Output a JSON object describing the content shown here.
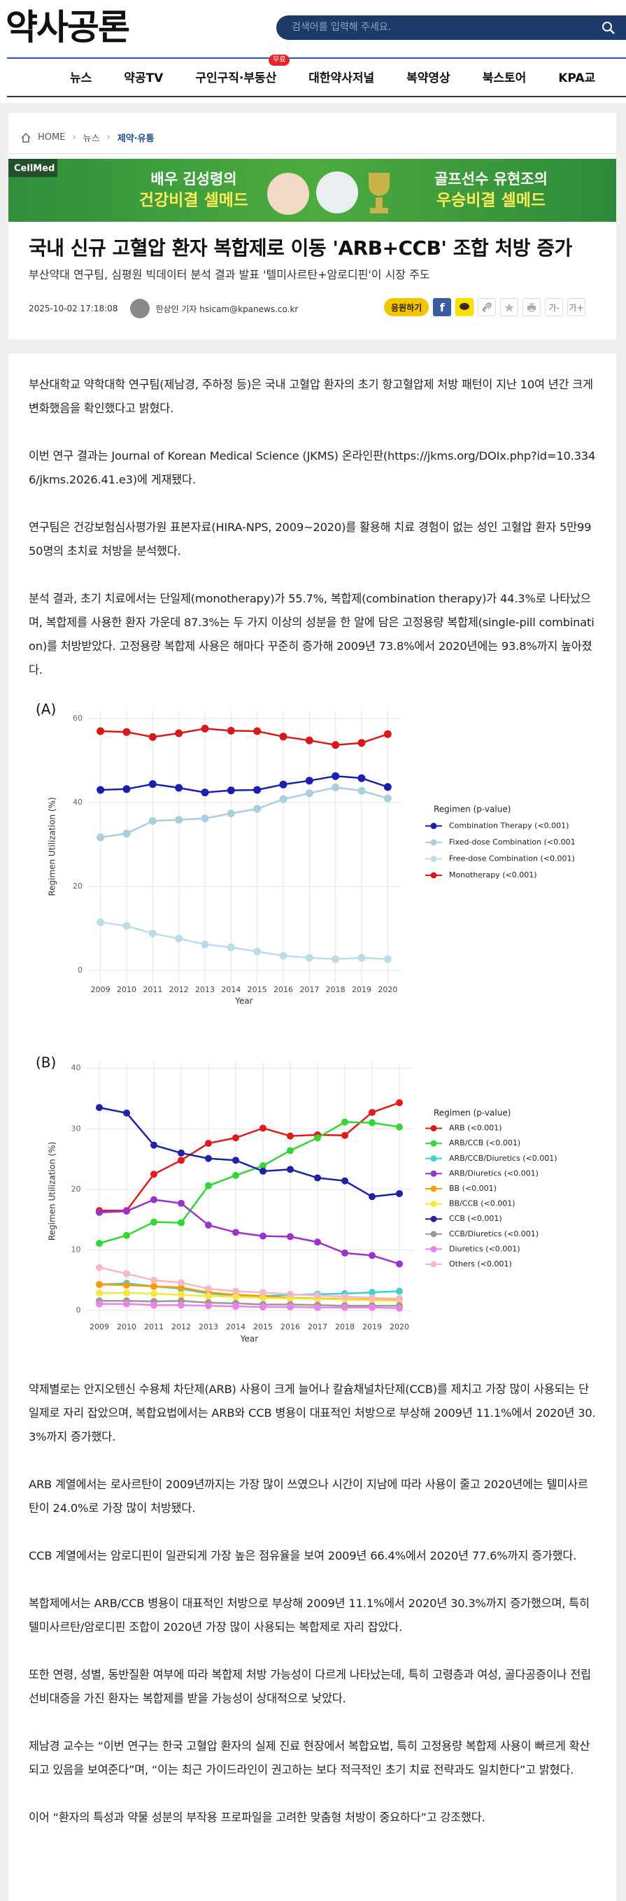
{
  "header": {
    "logo": "약사공론",
    "search_placeholder": "검색어를 입력해 주세요."
  },
  "nav": {
    "items": [
      "뉴스",
      "약공TV",
      "구인구직·부동산",
      "대한약사저널",
      "복약영상",
      "북스토어",
      "KPA교"
    ],
    "badge": "무료"
  },
  "breadcrumb": [
    "HOME",
    "뉴스",
    "제약·유통"
  ],
  "banner": {
    "brand": "CellMed",
    "left_line1": "배우 김성령의",
    "left_line2": "건강비결 셀메드",
    "right_line1": "골프선수 유현조의",
    "right_line2": "우승비결 셀메드"
  },
  "article": {
    "title": "국내 신규 고혈압 환자 복합제로 이동 'ARB+CCB' 조합 처방 증가",
    "subtitle": "부산약대 연구팀, 심평원 빅데이터 분석 결과 발표 '텔미사르탄+암로디핀'이 시장 주도",
    "date": "2025-10-02 17:18:08",
    "author": "한상인 기자 hsicam@kpanews.co.kr",
    "cheer_button": "응원하기",
    "facebook": "f",
    "font_down": "가-",
    "font_up": "가+",
    "paragraphs_before": [
      "부산대학교 약학대학 연구팀(제남경, 주하정 등)은 국내 고혈압 환자의 초기 항고혈압제 처방 패턴이 지난 10여 년간 크게 변화했음을 확인했다고 밝혔다.",
      "이번 연구 결과는 Journal of Korean Medical Science (JKMS) 온라인판(https://jkms.org/DOIx.php?id=10.3346/jkms.2026.41.e3)에 게재됐다.",
      "연구팀은 건강보험심사평가원 표본자료(HIRA-NPS, 2009~2020)를 활용해 치료 경험이 없는 성인 고혈압 환자 5만9950명의 초치료 처방을 분석했다.",
      "분석 결과, 초기 치료에서는 단일제(monotherapy)가 55.7%, 복합제(combination therapy)가 44.3%로 나타났으며, 복합제를 사용한 환자 가운데 87.3%는 두 가지 이상의 성분을 한 알에 담은 고정용량 복합제(single-pill combination)를 처방받았다. 고정용량 복합제 사용은 해마다 꾸준히 증가해 2009년 73.8%에서 2020년에는 93.8%까지 높아졌다."
    ],
    "paragraphs_after": [
      "약제별로는 안지오텐신 수용체 차단제(ARB) 사용이 크게 늘어나 칼슘채널차단제(CCB)를 제치고 가장 많이 사용되는 단일제로 자리 잡았으며, 복합요법에서는 ARB와 CCB 병용이 대표적인 처방으로 부상해 2009년 11.1%에서 2020년 30.3%까지 증가했다.",
      "ARB 계열에서는 로사르탄이 2009년까지는 가장 많이 쓰였으나 시간이 지남에 따라 사용이 줄고 2020년에는 텔미사르탄이 24.0%로 가장 많이 처방됐다.",
      "CCB 계열에서는 암로디핀이 일관되게 가장 높은 점유율을 보여 2009년 66.4%에서 2020년 77.6%까지 증가했다.",
      "복합제에서는 ARB/CCB 병용이 대표적인 처방으로 부상해 2009년 11.1%에서 2020년 30.3%까지 증가했으며, 특히 텔미사르탄/암로디핀 조합이 2020년 가장 많이 사용되는 복합제로 자리 잡았다.",
      "또한 연령, 성별, 동반질환 여부에 따라 복합제 처방 가능성이 다르게 나타났는데, 특히 고령층과 여성, 골다공증이나 전립선비대증을 가진 환자는 복합제를 받을 가능성이 상대적으로 낮았다.",
      "제남경 교수는 “이번 연구는 한국 고혈압 환자의 실제 진료 현장에서 복합요법, 특히 고정용량 복합제 사용이 빠르게 확산되고 있음을 보여준다”며, “이는 최근 가이드라인이 권고하는 보다 적극적인 초기 치료 전략과도 일치한다”고 밝혔다.",
      "이어 “환자의 특성과 약물 성분의 부작용 프로파일을 고려한 맞춤형 처방이 중요하다”고 강조했다."
    ]
  },
  "chart_data": [
    {
      "type": "line",
      "panel_label": "(A)",
      "y_label": "Regimen Utilization (%)",
      "x_label": "Year",
      "legend_title": "Regimen (p-value)",
      "legend_position": "right",
      "grid": true,
      "x": [
        2009,
        2010,
        2011,
        2012,
        2013,
        2014,
        2015,
        2016,
        2017,
        2018,
        2019,
        2020
      ],
      "xlim": [
        2008.5,
        2020.5
      ],
      "xticks": [
        2009,
        2010,
        2011,
        2012,
        2013,
        2014,
        2015,
        2016,
        2017,
        2018,
        2019,
        2020
      ],
      "ylim": [
        -3,
        62
      ],
      "yticks": [
        0,
        20,
        40,
        60
      ],
      "series": [
        {
          "name": "Combination Therapy (<0.001)",
          "color": "#1a1fae",
          "values": [
            43.0,
            43.2,
            44.4,
            43.5,
            42.4,
            42.9,
            43.0,
            44.3,
            45.2,
            46.3,
            45.8,
            43.7
          ]
        },
        {
          "name": "Fixed-dose Combination (<0.001)",
          "color": "#a9cfdc",
          "values": [
            31.7,
            32.6,
            35.6,
            35.9,
            36.2,
            37.4,
            38.5,
            40.8,
            42.2,
            43.6,
            42.8,
            41.0
          ]
        },
        {
          "name": "Free-dose Combination (<0.001)",
          "color": "#bcdde8",
          "values": [
            11.5,
            10.6,
            8.8,
            7.6,
            6.2,
            5.5,
            4.5,
            3.5,
            3.0,
            2.7,
            3.0,
            2.7
          ]
        },
        {
          "name": "Monotherapy (<0.001)",
          "color": "#d7191c",
          "values": [
            57.0,
            56.8,
            55.6,
            56.5,
            57.6,
            57.1,
            57.0,
            55.7,
            54.8,
            53.7,
            54.2,
            56.3
          ]
        }
      ]
    },
    {
      "type": "line",
      "panel_label": "(B)",
      "y_label": "Regimen Utilization (%)",
      "x_label": "Year",
      "legend_title": "Regimen (p-value)",
      "legend_position": "right",
      "grid": true,
      "x": [
        2009,
        2010,
        2011,
        2012,
        2013,
        2014,
        2015,
        2016,
        2017,
        2018,
        2019,
        2020
      ],
      "xlim": [
        2008.5,
        2020.5
      ],
      "xticks": [
        2009,
        2010,
        2011,
        2012,
        2013,
        2014,
        2015,
        2016,
        2017,
        2018,
        2019,
        2020
      ],
      "ylim": [
        -1.6,
        41
      ],
      "yticks": [
        0,
        10,
        20,
        30,
        40
      ],
      "series": [
        {
          "name": "ARB (<0.001)",
          "color": "#e31a1c",
          "values": [
            16.5,
            16.5,
            22.5,
            24.8,
            27.6,
            28.5,
            30.1,
            28.8,
            29.0,
            28.9,
            32.7,
            34.3
          ]
        },
        {
          "name": "ARB/CCB (<0.001)",
          "color": "#33d633",
          "values": [
            11.1,
            12.4,
            14.6,
            14.5,
            20.6,
            22.3,
            23.9,
            26.4,
            28.5,
            31.1,
            31.0,
            30.3
          ]
        },
        {
          "name": "ARB/CCB/Diuretics (<0.001)",
          "color": "#3fd0d0",
          "values": [
            4.3,
            4.5,
            4.0,
            3.6,
            2.8,
            2.5,
            2.4,
            2.6,
            2.7,
            2.8,
            3.0,
            3.2
          ]
        },
        {
          "name": "ARB/Diuretics (<0.001)",
          "color": "#9933cc",
          "values": [
            16.2,
            16.4,
            18.3,
            17.7,
            14.1,
            12.9,
            12.3,
            12.2,
            11.3,
            9.5,
            9.1,
            7.7
          ]
        },
        {
          "name": "BB (<0.001)",
          "color": "#ff9900",
          "values": [
            4.3,
            4.2,
            4.0,
            3.8,
            3.0,
            2.6,
            2.4,
            2.1,
            2.0,
            1.9,
            1.8,
            1.7
          ]
        },
        {
          "name": "BB/CCB (<0.001)",
          "color": "#f5e83a",
          "values": [
            2.9,
            2.9,
            2.8,
            2.6,
            2.4,
            2.3,
            2.1,
            2.0,
            1.9,
            1.8,
            1.7,
            1.6
          ]
        },
        {
          "name": "CCB (<0.001)",
          "color": "#1f22a6",
          "values": [
            33.5,
            32.6,
            27.3,
            26.0,
            25.1,
            24.8,
            23.0,
            23.3,
            21.9,
            21.4,
            18.8,
            19.3
          ]
        },
        {
          "name": "CCB/Diuretics (<0.001)",
          "color": "#999999",
          "values": [
            1.6,
            1.6,
            1.5,
            1.6,
            1.3,
            1.2,
            1.0,
            1.0,
            0.9,
            0.8,
            0.8,
            0.8
          ]
        },
        {
          "name": "Diuretics (<0.001)",
          "color": "#ea82ea",
          "values": [
            1.1,
            1.1,
            0.9,
            0.9,
            0.8,
            0.7,
            0.6,
            0.6,
            0.5,
            0.5,
            0.5,
            0.4
          ]
        },
        {
          "name": "Others (<0.001)",
          "color": "#f7b8c6",
          "values": [
            7.1,
            6.1,
            5.0,
            4.6,
            3.6,
            3.2,
            3.0,
            2.7,
            2.5,
            2.3,
            2.1,
            2.0
          ]
        }
      ]
    }
  ]
}
